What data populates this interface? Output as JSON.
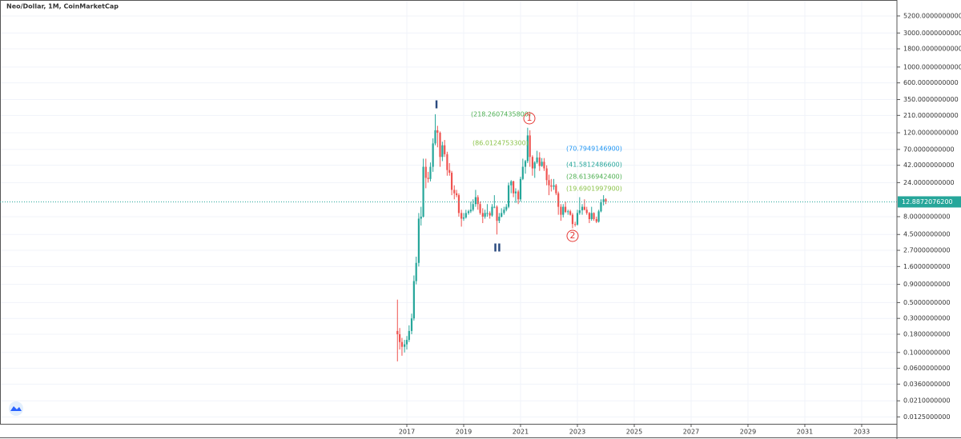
{
  "chart_data": {
    "type": "candlestick",
    "title": "Neo/Dollar, 1M, CoinMarketCap",
    "log_scale": true,
    "grid": true,
    "up_color": "#26a69a",
    "down_color": "#ef5350",
    "xlim": [
      2002.69,
      2034.24
    ],
    "xticks": [
      2017,
      2019,
      2021,
      2023,
      2025,
      2027,
      2029,
      2031,
      2033
    ],
    "ylim": [
      0.01,
      8700
    ],
    "yticks": [
      {
        "value": 5200,
        "label": "5200.0000000000"
      },
      {
        "value": 3000,
        "label": "3000.0000000000"
      },
      {
        "value": 1800,
        "label": "1800.0000000000"
      },
      {
        "value": 1000,
        "label": "1000.0000000000"
      },
      {
        "value": 600,
        "label": "600.0000000000"
      },
      {
        "value": 350,
        "label": "350.0000000000"
      },
      {
        "value": 210,
        "label": "210.0000000000"
      },
      {
        "value": 120,
        "label": "120.0000000000"
      },
      {
        "value": 70,
        "label": "70.0000000000"
      },
      {
        "value": 42,
        "label": "42.0000000000"
      },
      {
        "value": 24,
        "label": "24.0000000000"
      },
      {
        "value": 8,
        "label": "8.0000000000"
      },
      {
        "value": 4.5,
        "label": "4.5000000000"
      },
      {
        "value": 2.7,
        "label": "2.7000000000"
      },
      {
        "value": 1.6,
        "label": "1.6000000000"
      },
      {
        "value": 0.9,
        "label": "0.9000000000"
      },
      {
        "value": 0.5,
        "label": "0.5000000000"
      },
      {
        "value": 0.3,
        "label": "0.3000000000"
      },
      {
        "value": 0.18,
        "label": "0.1800000000"
      },
      {
        "value": 0.1,
        "label": "0.1000000000"
      },
      {
        "value": 0.06,
        "label": "0.0600000000"
      },
      {
        "value": 0.036,
        "label": "0.0360000000"
      },
      {
        "value": 0.021,
        "label": "0.0210000000"
      },
      {
        "value": 0.0125,
        "label": "0.0125000000"
      }
    ],
    "last_price": {
      "value": 12.88720762,
      "label": "12.8872076200"
    },
    "x": [
      2016.67,
      2016.75,
      2016.83,
      2016.92,
      2017,
      2017.08,
      2017.17,
      2017.25,
      2017.33,
      2017.42,
      2017.5,
      2017.58,
      2017.67,
      2017.75,
      2017.83,
      2017.92,
      2018,
      2018.08,
      2018.17,
      2018.25,
      2018.33,
      2018.42,
      2018.5,
      2018.58,
      2018.67,
      2018.75,
      2018.83,
      2018.92,
      2019,
      2019.08,
      2019.17,
      2019.25,
      2019.33,
      2019.42,
      2019.5,
      2019.58,
      2019.67,
      2019.75,
      2019.83,
      2019.92,
      2020,
      2020.08,
      2020.17,
      2020.25,
      2020.33,
      2020.42,
      2020.5,
      2020.58,
      2020.67,
      2020.75,
      2020.83,
      2020.92,
      2021,
      2021.08,
      2021.17,
      2021.25,
      2021.33,
      2021.42,
      2021.5,
      2021.58,
      2021.67,
      2021.75,
      2021.83,
      2021.92,
      2022,
      2022.08,
      2022.17,
      2022.25,
      2022.33,
      2022.42,
      2022.5,
      2022.58,
      2022.67,
      2022.75,
      2022.83,
      2022.92,
      2023,
      2023.08,
      2023.17,
      2023.25,
      2023.33,
      2023.42,
      2023.5,
      2023.58,
      2023.67,
      2023.75,
      2023.83,
      2023.92,
      2024
    ],
    "candles": [
      [
        0.2,
        0.55,
        0.075,
        0.18
      ],
      [
        0.18,
        0.22,
        0.11,
        0.14
      ],
      [
        0.14,
        0.16,
        0.09,
        0.12
      ],
      [
        0.12,
        0.15,
        0.1,
        0.13
      ],
      [
        0.13,
        0.17,
        0.11,
        0.15
      ],
      [
        0.15,
        0.24,
        0.14,
        0.2
      ],
      [
        0.2,
        0.35,
        0.18,
        0.3
      ],
      [
        0.3,
        1.2,
        0.28,
        1.0
      ],
      [
        1.0,
        2.2,
        0.9,
        1.8
      ],
      [
        1.8,
        9,
        1.6,
        7.5
      ],
      [
        7.5,
        11,
        6,
        8
      ],
      [
        8,
        52,
        7.8,
        40
      ],
      [
        40,
        52,
        20,
        28
      ],
      [
        28,
        34,
        24,
        27
      ],
      [
        27,
        46,
        25,
        40
      ],
      [
        40,
        100,
        34,
        85
      ],
      [
        85,
        218,
        80,
        130
      ],
      [
        130,
        150,
        75,
        120
      ],
      [
        120,
        125,
        40,
        55
      ],
      [
        55,
        90,
        48,
        80
      ],
      [
        80,
        95,
        55,
        60
      ],
      [
        60,
        65,
        30,
        36
      ],
      [
        36,
        45,
        30,
        33
      ],
      [
        33,
        35,
        16,
        19
      ],
      [
        19,
        22,
        14,
        17
      ],
      [
        17,
        19,
        15,
        16
      ],
      [
        16,
        17,
        8,
        9
      ],
      [
        9,
        10,
        5.8,
        7.5
      ],
      [
        7.5,
        9,
        7,
        7.8
      ],
      [
        7.8,
        10,
        7.5,
        9
      ],
      [
        9,
        10,
        8.5,
        9.5
      ],
      [
        9.5,
        13,
        9,
        10
      ],
      [
        10,
        14,
        9.5,
        12
      ],
      [
        12,
        19,
        11,
        15
      ],
      [
        15,
        16,
        10,
        12
      ],
      [
        12,
        13,
        8.5,
        9
      ],
      [
        9,
        10.5,
        6.5,
        8
      ],
      [
        8,
        10,
        7.5,
        9
      ],
      [
        9,
        12,
        8,
        9
      ],
      [
        9,
        9.5,
        7.5,
        8.3
      ],
      [
        8.3,
        12,
        8,
        11
      ],
      [
        11,
        16,
        10.5,
        11
      ],
      [
        11,
        11.5,
        4.5,
        7
      ],
      [
        7,
        9,
        6.5,
        8
      ],
      [
        8,
        10.5,
        7.8,
        9
      ],
      [
        9,
        11,
        8.5,
        10
      ],
      [
        10,
        12,
        9.5,
        11
      ],
      [
        11,
        24,
        10.5,
        22
      ],
      [
        22,
        26,
        17,
        25
      ],
      [
        25,
        25.5,
        15,
        17
      ],
      [
        17,
        20,
        12.5,
        18
      ],
      [
        18,
        19,
        12,
        14
      ],
      [
        14,
        29,
        13,
        27
      ],
      [
        27,
        52,
        26,
        40
      ],
      [
        40,
        50,
        32,
        48
      ],
      [
        48,
        141,
        45,
        110
      ],
      [
        110,
        130,
        40,
        55
      ],
      [
        55,
        58,
        30,
        38
      ],
      [
        38,
        48,
        28,
        46
      ],
      [
        46,
        67,
        44,
        54
      ],
      [
        54,
        64,
        35,
        41
      ],
      [
        41,
        53,
        40,
        47
      ],
      [
        47,
        53,
        35,
        38
      ],
      [
        38,
        42,
        22,
        26
      ],
      [
        26,
        31,
        16,
        22
      ],
      [
        22,
        27,
        18,
        21
      ],
      [
        21,
        27,
        19,
        22
      ],
      [
        22,
        23,
        16,
        17
      ],
      [
        17,
        18,
        8.5,
        11
      ],
      [
        11,
        12,
        7,
        8.5
      ],
      [
        8.5,
        12,
        7.8,
        11
      ],
      [
        11,
        13,
        9,
        9.3
      ],
      [
        9.3,
        10,
        8.5,
        9.5
      ],
      [
        9.5,
        10,
        8.3,
        8.5
      ],
      [
        8.5,
        9,
        5.5,
        6.3
      ],
      [
        6.3,
        6.8,
        5.8,
        6.2
      ],
      [
        6.2,
        10,
        6,
        9
      ],
      [
        9,
        15,
        8.5,
        9.8
      ],
      [
        9.8,
        12,
        8.5,
        11
      ],
      [
        11,
        14,
        9.8,
        10
      ],
      [
        10,
        11,
        8.5,
        9
      ],
      [
        9,
        9.3,
        6.5,
        7.4
      ],
      [
        7.4,
        11,
        7,
        9
      ],
      [
        9,
        9.2,
        7,
        7.4
      ],
      [
        7.4,
        8,
        6.5,
        6.8
      ],
      [
        6.8,
        10,
        6.6,
        9.5
      ],
      [
        9.5,
        14,
        9.2,
        12.8
      ],
      [
        12.8,
        16,
        11.5,
        14
      ],
      [
        14,
        14.5,
        12,
        12.89
      ]
    ],
    "annotations": [
      {
        "text": "(218.2607435800)",
        "color": "#4caf50"
      },
      {
        "text": "(86.0124753300)",
        "color": "#8bc34a"
      },
      {
        "text": "(70.7949146900)",
        "color": "#2196f3"
      },
      {
        "text": "(41.5812486600)",
        "color": "#26a69a"
      },
      {
        "text": "(28.6136942400)",
        "color": "#4caf50"
      },
      {
        "text": "(19.6901997900)",
        "color": "#8bc34a"
      },
      {
        "text": "I",
        "color": "#2a4a7f"
      },
      {
        "text": "II",
        "color": "#2a4a7f"
      },
      {
        "text": "1",
        "color": "#e53935"
      },
      {
        "text": "2",
        "color": "#e53935"
      }
    ]
  }
}
